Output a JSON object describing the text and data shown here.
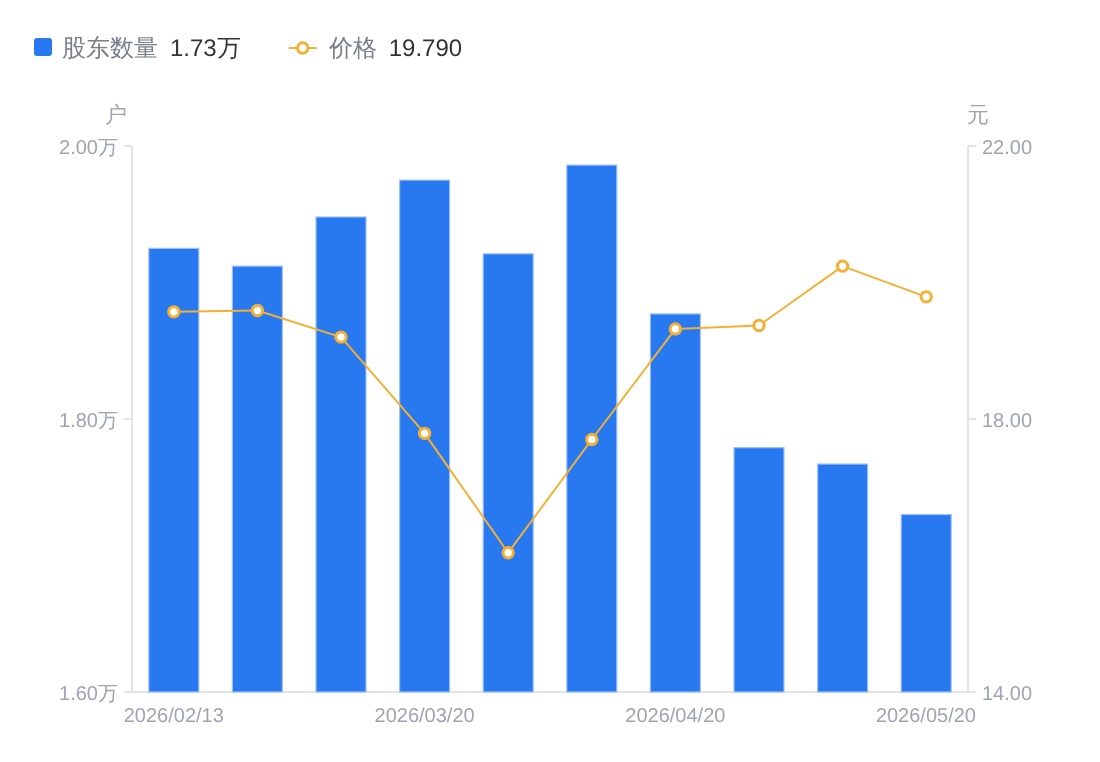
{
  "chart_data": {
    "type": "bar",
    "ylabel": "户",
    "y2label": "元",
    "categories": [
      "2026/02/13",
      null,
      null,
      "2026/03/20",
      null,
      null,
      "2026/04/20",
      null,
      null,
      "2026/05/20"
    ],
    "series": [
      {
        "name": "股东数量",
        "color": "#2878f0",
        "values": [
          1.925,
          1.912,
          1.948,
          1.975,
          1.921,
          1.986,
          1.877,
          1.779,
          1.767,
          1.73
        ]
      },
      {
        "name": "价格",
        "type": "line",
        "axis": "y2",
        "color": "#f5b034",
        "marker": "circle",
        "line_style": "solid",
        "values": [
          19.57,
          19.59,
          19.2,
          17.79,
          16.04,
          17.7,
          19.32,
          19.37,
          20.24,
          19.79
        ]
      }
    ],
    "ylim": [
      1.6,
      2.0
    ],
    "yticks": [
      {
        "value": 1.6,
        "label": "1.60万"
      },
      {
        "value": 1.8,
        "label": "1.80万"
      },
      {
        "value": 2.0,
        "label": "2.00万"
      }
    ],
    "y2lim": [
      14,
      22
    ],
    "y2ticks": [
      {
        "value": 14,
        "label": "14.00"
      },
      {
        "value": 18,
        "label": "18.00"
      },
      {
        "value": 22,
        "label": "22.00"
      }
    ],
    "legend": "top left",
    "grid": false,
    "annotations": [
      "1.73万",
      "19.790"
    ]
  }
}
